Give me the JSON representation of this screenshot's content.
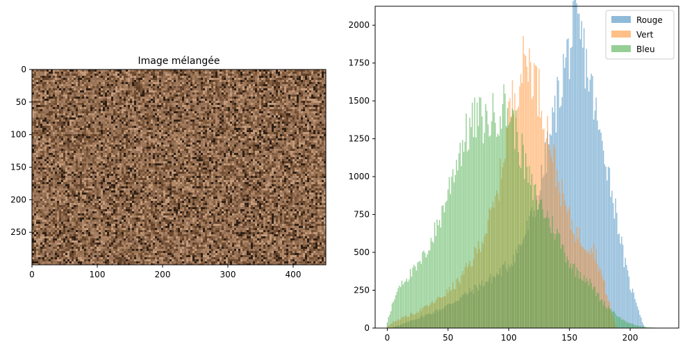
{
  "chart_data": [
    {
      "type": "image",
      "title": "Image mélangée",
      "x_ticks": [
        0,
        100,
        200,
        300,
        400
      ],
      "y_ticks": [
        0,
        50,
        100,
        150,
        200,
        250
      ],
      "xlim": [
        0,
        450
      ],
      "ylim": [
        300,
        0
      ],
      "image_colors": [
        "#8a6547",
        "#9c7456",
        "#7a5638",
        "#b08868",
        "#5e3f28",
        "#a67e60",
        "#6f4c33",
        "#c49c7c",
        "#2d1f14",
        "#947058"
      ]
    },
    {
      "type": "bar",
      "title": "",
      "xlabel": "",
      "ylabel": "",
      "xlim": [
        -10,
        240
      ],
      "ylim": [
        0,
        2125
      ],
      "x_ticks": [
        0,
        50,
        100,
        150,
        200
      ],
      "y_ticks": [
        0,
        250,
        500,
        750,
        1000,
        1250,
        1500,
        1750,
        2000
      ],
      "legend_position": "top-right",
      "x_bin_width": 1,
      "series": [
        {
          "name": "Rouge",
          "color": "#1f77b4",
          "anchors": [
            [
              5,
              8
            ],
            [
              10,
              18
            ],
            [
              20,
              50
            ],
            [
              30,
              80
            ],
            [
              40,
              110
            ],
            [
              50,
              150
            ],
            [
              60,
              200
            ],
            [
              70,
              250
            ],
            [
              80,
              300
            ],
            [
              90,
              350
            ],
            [
              100,
              420
            ],
            [
              110,
              550
            ],
            [
              120,
              750
            ],
            [
              125,
              900
            ],
            [
              130,
              1100
            ],
            [
              135,
              1300
            ],
            [
              140,
              1500
            ],
            [
              145,
              1700
            ],
            [
              150,
              1850
            ],
            [
              155,
              1980
            ],
            [
              160,
              1900
            ],
            [
              165,
              1700
            ],
            [
              170,
              1500
            ],
            [
              175,
              1250
            ],
            [
              180,
              1150
            ],
            [
              185,
              900
            ],
            [
              190,
              700
            ],
            [
              195,
              450
            ],
            [
              200,
              280
            ],
            [
              205,
              180
            ],
            [
              210,
              40
            ],
            [
              212,
              10
            ]
          ]
        },
        {
          "name": "Vert",
          "color": "#ff7f0e",
          "anchors": [
            [
              0,
              10
            ],
            [
              5,
              40
            ],
            [
              10,
              60
            ],
            [
              20,
              90
            ],
            [
              30,
              130
            ],
            [
              40,
              180
            ],
            [
              50,
              240
            ],
            [
              60,
              320
            ],
            [
              70,
              450
            ],
            [
              80,
              620
            ],
            [
              90,
              850
            ],
            [
              95,
              1100
            ],
            [
              100,
              1400
            ],
            [
              105,
              1550
            ],
            [
              110,
              1700
            ],
            [
              115,
              1780
            ],
            [
              120,
              1700
            ],
            [
              125,
              1550
            ],
            [
              130,
              1380
            ],
            [
              135,
              1200
            ],
            [
              140,
              1000
            ],
            [
              145,
              850
            ],
            [
              150,
              720
            ],
            [
              155,
              640
            ],
            [
              160,
              580
            ],
            [
              165,
              550
            ],
            [
              170,
              530
            ],
            [
              175,
              400
            ],
            [
              180,
              250
            ],
            [
              185,
              100
            ],
            [
              188,
              20
            ]
          ]
        },
        {
          "name": "Bleu",
          "color": "#2ca02c",
          "anchors": [
            [
              0,
              40
            ],
            [
              3,
              120
            ],
            [
              6,
              200
            ],
            [
              10,
              290
            ],
            [
              15,
              330
            ],
            [
              20,
              360
            ],
            [
              25,
              400
            ],
            [
              30,
              470
            ],
            [
              35,
              560
            ],
            [
              40,
              650
            ],
            [
              45,
              760
            ],
            [
              50,
              900
            ],
            [
              55,
              1050
            ],
            [
              60,
              1180
            ],
            [
              65,
              1270
            ],
            [
              70,
              1350
            ],
            [
              75,
              1390
            ],
            [
              80,
              1360
            ],
            [
              85,
              1380
            ],
            [
              90,
              1420
            ],
            [
              95,
              1470
            ],
            [
              100,
              1430
            ],
            [
              105,
              1330
            ],
            [
              110,
              1180
            ],
            [
              115,
              1020
            ],
            [
              120,
              900
            ],
            [
              125,
              830
            ],
            [
              130,
              760
            ],
            [
              135,
              690
            ],
            [
              140,
              620
            ],
            [
              145,
              520
            ],
            [
              150,
              440
            ],
            [
              155,
              380
            ],
            [
              160,
              360
            ],
            [
              165,
              320
            ],
            [
              170,
              260
            ],
            [
              175,
              200
            ],
            [
              180,
              150
            ],
            [
              185,
              120
            ],
            [
              190,
              80
            ],
            [
              195,
              50
            ],
            [
              200,
              30
            ],
            [
              205,
              18
            ],
            [
              210,
              10
            ],
            [
              215,
              5
            ],
            [
              220,
              3
            ],
            [
              228,
              1
            ]
          ]
        }
      ]
    }
  ]
}
